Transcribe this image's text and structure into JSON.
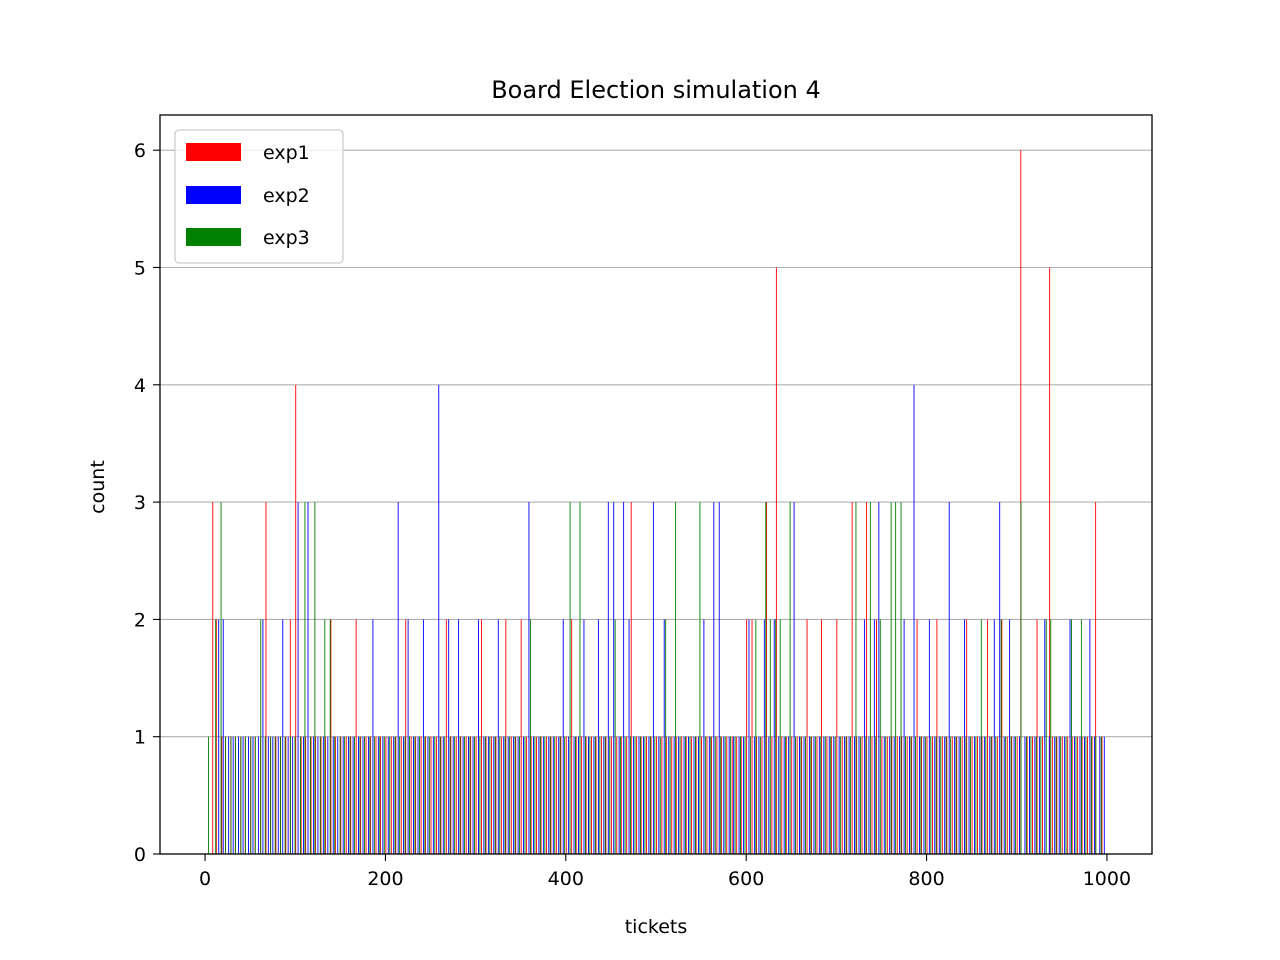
{
  "chart_data": {
    "type": "bar",
    "title": "Board Election simulation 4",
    "xlabel": "tickets",
    "ylabel": "count",
    "xlim": [
      -50,
      1050
    ],
    "ylim": [
      0,
      6.3
    ],
    "xticks": [
      0,
      200,
      400,
      600,
      800,
      1000
    ],
    "xtick_labels": [
      "0",
      "200",
      "400",
      "600",
      "800",
      "1000"
    ],
    "yticks": [
      0,
      1,
      2,
      3,
      4,
      5,
      6
    ],
    "ytick_labels": [
      "0",
      "1",
      "2",
      "3",
      "4",
      "5",
      "6"
    ],
    "grid": "y",
    "legend_position": "upper-left",
    "series": [
      {
        "name": "exp1",
        "color": "#ff0000",
        "x": [
          8,
          12,
          18,
          22,
          28,
          33,
          39,
          44,
          50,
          55,
          61,
          67,
          72,
          78,
          83,
          89,
          94,
          100,
          106,
          111,
          117,
          122,
          128,
          133,
          139,
          144,
          150,
          156,
          161,
          167,
          172,
          178,
          183,
          189,
          194,
          200,
          206,
          211,
          217,
          222,
          228,
          233,
          239,
          244,
          250,
          256,
          261,
          267,
          272,
          278,
          283,
          289,
          294,
          300,
          306,
          311,
          317,
          322,
          328,
          333,
          339,
          344,
          350,
          356,
          361,
          367,
          372,
          378,
          383,
          389,
          394,
          400,
          406,
          411,
          417,
          422,
          428,
          433,
          439,
          444,
          450,
          456,
          461,
          467,
          472,
          478,
          483,
          489,
          494,
          500,
          506,
          511,
          517,
          522,
          528,
          533,
          539,
          544,
          550,
          556,
          561,
          567,
          572,
          578,
          584,
          589,
          594,
          600,
          606,
          611,
          617,
          622,
          628,
          633,
          639,
          644,
          650,
          656,
          661,
          667,
          672,
          678,
          683,
          689,
          694,
          700,
          706,
          711,
          717,
          722,
          728,
          733,
          739,
          744,
          750,
          756,
          761,
          767,
          772,
          778,
          783,
          789,
          794,
          800,
          806,
          811,
          817,
          822,
          828,
          833,
          839,
          844,
          850,
          856,
          861,
          867,
          872,
          878,
          883,
          889,
          894,
          900,
          904,
          911,
          917,
          922,
          928,
          936,
          939,
          944,
          950,
          956,
          961,
          967,
          972,
          978,
          983,
          987,
          994
        ],
        "values": [
          3,
          2,
          1,
          1,
          1,
          1,
          1,
          1,
          1,
          1,
          1,
          3,
          1,
          1,
          1,
          1,
          2,
          4,
          1,
          1,
          1,
          1,
          1,
          1,
          2,
          1,
          1,
          1,
          1,
          2,
          1,
          1,
          1,
          1,
          1,
          1,
          1,
          1,
          1,
          2,
          1,
          1,
          1,
          1,
          1,
          1,
          1,
          2,
          1,
          1,
          1,
          1,
          1,
          1,
          2,
          1,
          1,
          1,
          1,
          2,
          1,
          1,
          2,
          1,
          1,
          1,
          1,
          1,
          1,
          1,
          1,
          1,
          2,
          1,
          1,
          1,
          1,
          1,
          1,
          1,
          1,
          1,
          1,
          1,
          3,
          1,
          1,
          1,
          1,
          1,
          1,
          1,
          1,
          1,
          1,
          1,
          1,
          1,
          1,
          1,
          1,
          1,
          1,
          1,
          1,
          1,
          1,
          2,
          2,
          1,
          1,
          3,
          1,
          5,
          1,
          1,
          1,
          1,
          1,
          2,
          1,
          1,
          2,
          1,
          1,
          2,
          1,
          1,
          3,
          1,
          1,
          3,
          1,
          2,
          1,
          1,
          1,
          1,
          1,
          1,
          1,
          2,
          1,
          1,
          1,
          2,
          1,
          1,
          1,
          1,
          1,
          2,
          1,
          1,
          1,
          2,
          1,
          1,
          2,
          1,
          1,
          1,
          6,
          1,
          1,
          2,
          1,
          5,
          1,
          1,
          1,
          1,
          1,
          1,
          1,
          1,
          1,
          3,
          1
        ]
      },
      {
        "name": "exp2",
        "color": "#0000ff",
        "x": [
          14,
          19,
          25,
          30,
          36,
          41,
          47,
          52,
          58,
          63,
          69,
          74,
          80,
          85,
          91,
          96,
          102,
          108,
          113,
          119,
          124,
          130,
          135,
          141,
          146,
          152,
          158,
          163,
          169,
          174,
          180,
          185,
          191,
          196,
          202,
          208,
          213,
          219,
          224,
          230,
          235,
          241,
          246,
          252,
          258,
          263,
          269,
          274,
          280,
          285,
          291,
          296,
          302,
          308,
          313,
          319,
          324,
          330,
          335,
          341,
          346,
          352,
          358,
          363,
          369,
          374,
          380,
          385,
          391,
          396,
          402,
          408,
          413,
          419,
          424,
          430,
          435,
          441,
          446,
          452,
          458,
          463,
          469,
          474,
          480,
          485,
          491,
          496,
          502,
          508,
          513,
          519,
          524,
          530,
          535,
          541,
          546,
          552,
          558,
          563,
          569,
          574,
          580,
          585,
          591,
          596,
          602,
          608,
          613,
          619,
          624,
          630,
          635,
          641,
          646,
          652,
          658,
          663,
          669,
          674,
          680,
          685,
          691,
          696,
          702,
          708,
          713,
          719,
          724,
          730,
          735,
          741,
          746,
          752,
          758,
          763,
          769,
          774,
          780,
          785,
          791,
          796,
          802,
          808,
          813,
          819,
          824,
          830,
          835,
          841,
          846,
          852,
          858,
          863,
          869,
          874,
          880,
          885,
          891,
          896,
          902,
          908,
          913,
          919,
          924,
          930,
          935,
          941,
          946,
          952,
          958,
          963,
          969,
          974,
          980,
          985,
          991,
          996
        ],
        "values": [
          2,
          2,
          1,
          1,
          1,
          1,
          1,
          1,
          1,
          2,
          1,
          1,
          1,
          2,
          1,
          1,
          3,
          1,
          3,
          1,
          1,
          1,
          1,
          1,
          1,
          1,
          1,
          1,
          1,
          1,
          1,
          2,
          1,
          1,
          1,
          1,
          3,
          1,
          2,
          1,
          1,
          2,
          1,
          1,
          4,
          1,
          2,
          1,
          2,
          1,
          1,
          1,
          2,
          1,
          1,
          1,
          2,
          1,
          1,
          1,
          1,
          1,
          3,
          1,
          1,
          1,
          1,
          1,
          1,
          2,
          1,
          1,
          1,
          2,
          1,
          1,
          2,
          1,
          3,
          3,
          1,
          3,
          2,
          1,
          1,
          1,
          1,
          3,
          1,
          2,
          1,
          1,
          1,
          1,
          1,
          1,
          1,
          2,
          1,
          3,
          3,
          1,
          1,
          1,
          1,
          1,
          2,
          1,
          1,
          2,
          1,
          2,
          1,
          1,
          1,
          3,
          1,
          1,
          1,
          1,
          1,
          1,
          1,
          1,
          1,
          1,
          1,
          1,
          1,
          2,
          1,
          2,
          3,
          1,
          1,
          1,
          1,
          2,
          1,
          4,
          1,
          1,
          2,
          1,
          1,
          1,
          3,
          1,
          1,
          2,
          1,
          1,
          1,
          1,
          1,
          2,
          3,
          1,
          2,
          1,
          1,
          1,
          1,
          1,
          1,
          2,
          1,
          1,
          1,
          1,
          2,
          1,
          1,
          1,
          2,
          1,
          1,
          1
        ]
      },
      {
        "name": "exp3",
        "color": "#008000",
        "x": [
          2,
          10,
          16,
          21,
          27,
          32,
          38,
          43,
          49,
          54,
          60,
          65,
          71,
          76,
          82,
          87,
          93,
          98,
          104,
          109,
          115,
          120,
          126,
          131,
          137,
          142,
          148,
          153,
          159,
          164,
          170,
          175,
          181,
          186,
          192,
          197,
          203,
          209,
          214,
          220,
          225,
          231,
          236,
          242,
          247,
          253,
          259,
          264,
          270,
          275,
          281,
          286,
          292,
          297,
          303,
          309,
          314,
          320,
          325,
          331,
          336,
          342,
          347,
          353,
          359,
          364,
          370,
          375,
          381,
          386,
          392,
          397,
          403,
          409,
          414,
          420,
          425,
          431,
          436,
          442,
          447,
          453,
          459,
          464,
          470,
          475,
          481,
          486,
          492,
          497,
          503,
          509,
          514,
          520,
          525,
          531,
          536,
          542,
          547,
          553,
          559,
          564,
          570,
          575,
          581,
          586,
          592,
          597,
          603,
          609,
          614,
          620,
          625,
          631,
          636,
          642,
          647,
          653,
          659,
          664,
          670,
          675,
          681,
          686,
          692,
          697,
          703,
          709,
          714,
          720,
          725,
          731,
          736,
          742,
          747,
          753,
          759,
          764,
          770,
          775,
          781,
          786,
          792,
          797,
          803,
          809,
          814,
          820,
          825,
          831,
          836,
          842,
          847,
          853,
          859,
          864,
          870,
          875,
          881,
          886,
          892,
          897,
          903,
          909,
          914,
          920,
          925,
          931,
          936,
          942,
          947,
          953,
          959,
          964,
          970,
          975,
          981,
          986,
          992
        ],
        "values": [
          1,
          2,
          3,
          1,
          1,
          1,
          1,
          1,
          1,
          1,
          2,
          1,
          1,
          1,
          1,
          1,
          1,
          1,
          1,
          3,
          1,
          3,
          1,
          2,
          2,
          1,
          1,
          1,
          1,
          1,
          1,
          1,
          1,
          1,
          1,
          1,
          1,
          1,
          1,
          1,
          1,
          1,
          1,
          1,
          1,
          1,
          1,
          1,
          1,
          1,
          1,
          1,
          1,
          1,
          1,
          1,
          1,
          1,
          1,
          1,
          1,
          1,
          1,
          1,
          2,
          1,
          1,
          1,
          1,
          1,
          1,
          1,
          3,
          1,
          3,
          1,
          1,
          1,
          1,
          1,
          1,
          2,
          1,
          1,
          1,
          1,
          1,
          1,
          1,
          1,
          1,
          2,
          1,
          3,
          1,
          1,
          1,
          1,
          3,
          1,
          1,
          1,
          1,
          1,
          1,
          1,
          1,
          1,
          1,
          2,
          1,
          3,
          2,
          2,
          2,
          1,
          3,
          1,
          1,
          1,
          1,
          1,
          1,
          1,
          1,
          1,
          1,
          1,
          1,
          3,
          1,
          1,
          3,
          1,
          2,
          1,
          3,
          3,
          3,
          1,
          1,
          1,
          1,
          1,
          1,
          1,
          1,
          1,
          1,
          1,
          1,
          1,
          1,
          1,
          2,
          1,
          1,
          1,
          2,
          1,
          1,
          1,
          3,
          1,
          1,
          1,
          1,
          2,
          2,
          1,
          1,
          1,
          2,
          1,
          2,
          1,
          1,
          1,
          1
        ]
      }
    ]
  }
}
